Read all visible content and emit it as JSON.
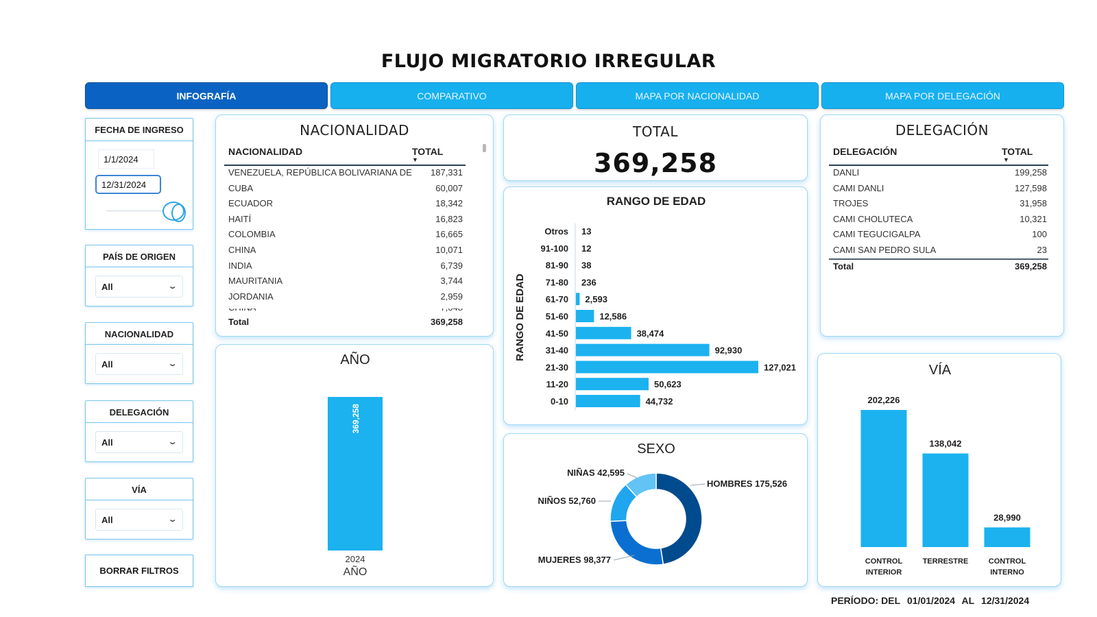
{
  "title": "FLUJO MIGRATORIO IRREGULAR",
  "tabs": [
    {
      "label": "INFOGRAFÍA",
      "active": true
    },
    {
      "label": "COMPARATIVO",
      "active": false
    },
    {
      "label": "MAPA POR NACIONALIDAD",
      "active": false
    },
    {
      "label": "MAPA POR DELEGACIÓN",
      "active": false
    }
  ],
  "filters": {
    "fecha": {
      "label": "FECHA DE INGRESO",
      "start": "1/1/2024",
      "end": "12/31/2024"
    },
    "pais": {
      "label": "PAÍS DE ORIGEN",
      "value": "All"
    },
    "nacionalidad": {
      "label": "NACIONALIDAD",
      "value": "All"
    },
    "delegacion": {
      "label": "DELEGACIÓN",
      "value": "All"
    },
    "via": {
      "label": "VÍA",
      "value": "All"
    },
    "clear_label": "BORRAR FILTROS"
  },
  "nacionalidad_table": {
    "title": "NACIONALIDAD",
    "col1": "NACIONALIDAD",
    "col2": "TOTAL",
    "rows": [
      {
        "name": "VENEZUELA, REPÚBLICA BOLIVARIANA DE",
        "value": "187,331"
      },
      {
        "name": "CUBA",
        "value": "60,007"
      },
      {
        "name": "ECUADOR",
        "value": "18,342"
      },
      {
        "name": "HAITÍ",
        "value": "16,823"
      },
      {
        "name": "COLOMBIA",
        "value": "16,665"
      },
      {
        "name": "CHINA",
        "value": "10,071"
      },
      {
        "name": "INDIA",
        "value": "6,739"
      },
      {
        "name": "MAURITANIA",
        "value": "3,744"
      },
      {
        "name": "JORDANIA",
        "value": "2,959"
      }
    ],
    "total_label": "Total",
    "total_value": "369,258"
  },
  "total_card": {
    "title": "TOTAL",
    "value": "369,258"
  },
  "delegacion_table": {
    "title": "DELEGACIÓN",
    "col1": "DELEGACIÓN",
    "col2": "TOTAL",
    "rows": [
      {
        "name": "DANLI",
        "value": "199,258"
      },
      {
        "name": "CAMI DANLI",
        "value": "127,598"
      },
      {
        "name": "TROJES",
        "value": "31,958"
      },
      {
        "name": "CAMI CHOLUTECA",
        "value": "10,321"
      },
      {
        "name": "CAMI TEGUCIGALPA",
        "value": "100"
      },
      {
        "name": "CAMI SAN PEDRO SULA",
        "value": "23"
      }
    ],
    "total_label": "Total",
    "total_value": "369,258"
  },
  "colors": {
    "accent": "#17b0ef",
    "active_tab": "#0a63c2",
    "bar": "#1bb2ef",
    "donut_dark": "#004b8d",
    "donut_mid": "#0a6fd0",
    "donut_light": "#1fa6ee",
    "donut_lighter": "#62c3f5"
  },
  "chart_data": [
    {
      "id": "rango",
      "type": "bar",
      "orientation": "horizontal",
      "title": "RANGO DE EDAD",
      "ylabel": "RANGO DE EDAD",
      "categories": [
        "Otros",
        "91-100",
        "81-90",
        "71-80",
        "61-70",
        "51-60",
        "41-50",
        "31-40",
        "21-30",
        "11-20",
        "0-10"
      ],
      "values": [
        13,
        12,
        38,
        236,
        2593,
        12586,
        38474,
        92930,
        127021,
        50623,
        44732
      ],
      "labels": [
        "13",
        "12",
        "38",
        "236",
        "2,593",
        "12,586",
        "38,474",
        "92,930",
        "127,021",
        "50,623",
        "44,732"
      ]
    },
    {
      "id": "anio",
      "type": "bar",
      "title": "AÑO",
      "xlabel": "AÑO",
      "categories": [
        "2024"
      ],
      "values": [
        369258
      ],
      "labels": [
        "369,258"
      ]
    },
    {
      "id": "sexo",
      "type": "pie",
      "title": "SEXO",
      "slices": [
        {
          "name": "HOMBRES",
          "value": 175526,
          "label": "175,526"
        },
        {
          "name": "MUJERES",
          "value": 98377,
          "label": "98,377"
        },
        {
          "name": "NIÑOS",
          "value": 52760,
          "label": "52,760"
        },
        {
          "name": "NIÑAS",
          "value": 42595,
          "label": "42,595"
        }
      ]
    },
    {
      "id": "via",
      "type": "bar",
      "title": "VÍA",
      "categories": [
        "CONTROL INTERIOR",
        "TERRESTRE",
        "CONTROL INTERNO"
      ],
      "category_lines": [
        [
          "CONTROL",
          "INTERIOR"
        ],
        [
          "TERRESTRE"
        ],
        [
          "CONTROL",
          "INTERNO"
        ]
      ],
      "values": [
        202226,
        138042,
        28990
      ],
      "labels": [
        "202,226",
        "138,042",
        "28,990"
      ]
    }
  ],
  "footer": {
    "label": "PERÍODO: DEL",
    "from": "01/01/2024",
    "mid": "AL",
    "to": "12/31/2024"
  }
}
